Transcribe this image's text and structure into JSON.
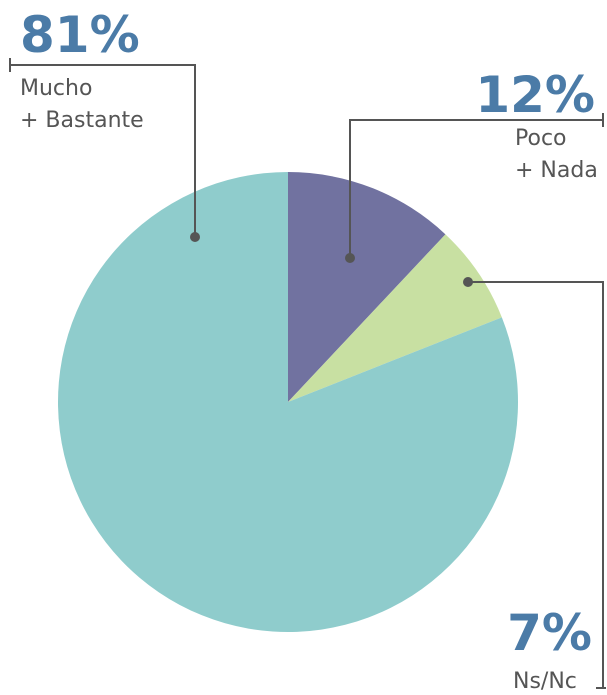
{
  "chart_data": {
    "type": "pie",
    "categories": [
      "Poco\n+ Nada",
      "Ns/Nc",
      "Mucho\n+ Bastante"
    ],
    "values": [
      12,
      7,
      81
    ],
    "value_labels": [
      "12%",
      "7%",
      "81%"
    ],
    "colors": [
      "#7172a0",
      "#c8e0a2",
      "#8fcccc"
    ]
  }
}
